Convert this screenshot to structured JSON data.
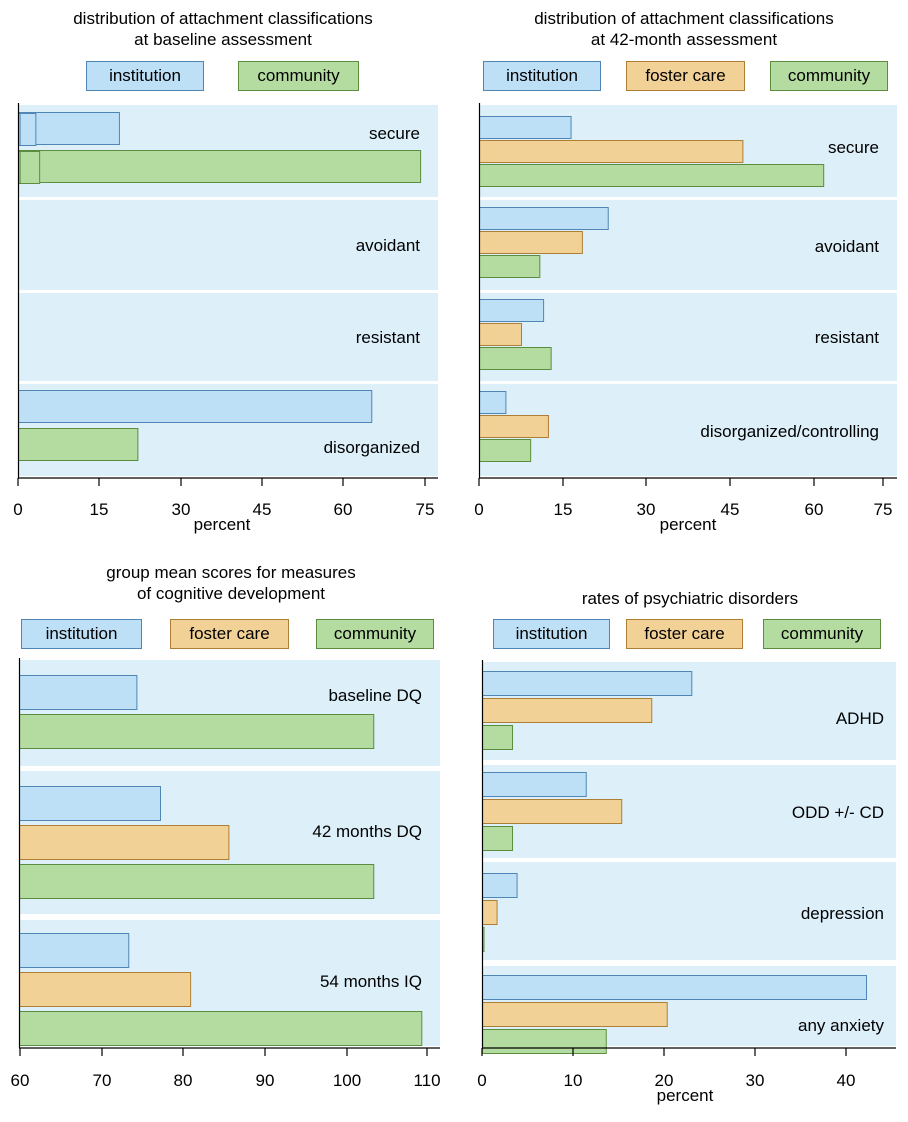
{
  "colors": {
    "institution": "#bde0f6",
    "foster care": "#f2d196",
    "community": "#b5dca0",
    "institution_edge": "#4f86b6",
    "foster care_edge": "#ad7f34",
    "community_edge": "#5a8e3e",
    "band": "#ddf0fa"
  },
  "chart_data": [
    {
      "type": "bar",
      "orientation": "horizontal",
      "title": "distribution of attachment classifications at baseline assessment",
      "title_lines": [
        "distribution of attachment classifications",
        "at baseline assessment"
      ],
      "xlabel": "percent",
      "xlim": [
        0,
        75
      ],
      "xticks": [
        0,
        15,
        30,
        45,
        60,
        75
      ],
      "legend": [
        "institution",
        "community"
      ],
      "categories": [
        "secure",
        "avoidant",
        "resistant",
        "disorganized"
      ],
      "series": [
        {
          "name": "institution",
          "values": [
            18.6,
            3.2,
            0.3,
            65.1
          ]
        },
        {
          "name": "community",
          "values": [
            74.1,
            3.9,
            0.3,
            22.0
          ]
        }
      ]
    },
    {
      "type": "bar",
      "orientation": "horizontal",
      "title": "distribution of attachment classifications at 42-month assessment",
      "title_lines": [
        "distribution of attachment classifications",
        "at 42-month assessment"
      ],
      "xlabel": "percent",
      "xlim": [
        0,
        75
      ],
      "xticks": [
        0,
        15,
        30,
        45,
        60,
        75
      ],
      "legend": [
        "institution",
        "foster care",
        "community"
      ],
      "categories": [
        "secure",
        "avoidant",
        "resistant",
        "disorganized/controlling"
      ],
      "series": [
        {
          "name": "institution",
          "values": [
            17.0,
            23.9,
            11.9,
            4.9
          ]
        },
        {
          "name": "foster care",
          "values": [
            48.9,
            19.1,
            7.8,
            12.8
          ]
        },
        {
          "name": "community",
          "values": [
            63.9,
            11.2,
            13.3,
            9.5
          ]
        }
      ]
    },
    {
      "type": "bar",
      "orientation": "horizontal",
      "title": "group mean scores for measures of cognitive development",
      "title_lines": [
        "group mean scores for measures",
        "of cognitive development"
      ],
      "xlabel": "",
      "xlim": [
        60,
        110
      ],
      "xticks": [
        60,
        70,
        80,
        90,
        100,
        110
      ],
      "legend": [
        "institution",
        "foster care",
        "community"
      ],
      "categories": [
        "baseline DQ",
        "42 months DQ",
        "54 months IQ"
      ],
      "series": [
        {
          "name": "institution",
          "values": [
            74.3,
            77.2,
            73.3
          ]
        },
        {
          "name": "foster care",
          "values": [
            null,
            85.6,
            80.9
          ]
        },
        {
          "name": "community",
          "values": [
            103.4,
            103.4,
            109.3
          ]
        }
      ]
    },
    {
      "type": "bar",
      "orientation": "horizontal",
      "title": "rates of psychiatric disorders",
      "title_lines": [
        "rates of psychiatric disorders"
      ],
      "xlabel": "percent",
      "xlim": [
        0,
        45.5
      ],
      "xticks": [
        0,
        10,
        20,
        30,
        40
      ],
      "legend": [
        "institution",
        "foster care",
        "community"
      ],
      "categories": [
        "ADHD",
        "ODD +/- CD",
        "depression",
        "any anxiety"
      ],
      "series": [
        {
          "name": "institution",
          "values": [
            23.0,
            11.4,
            3.8,
            42.2
          ]
        },
        {
          "name": "foster care",
          "values": [
            18.6,
            15.3,
            1.6,
            20.3
          ]
        },
        {
          "name": "community",
          "values": [
            3.3,
            3.3,
            0.1,
            13.6
          ]
        }
      ]
    }
  ]
}
